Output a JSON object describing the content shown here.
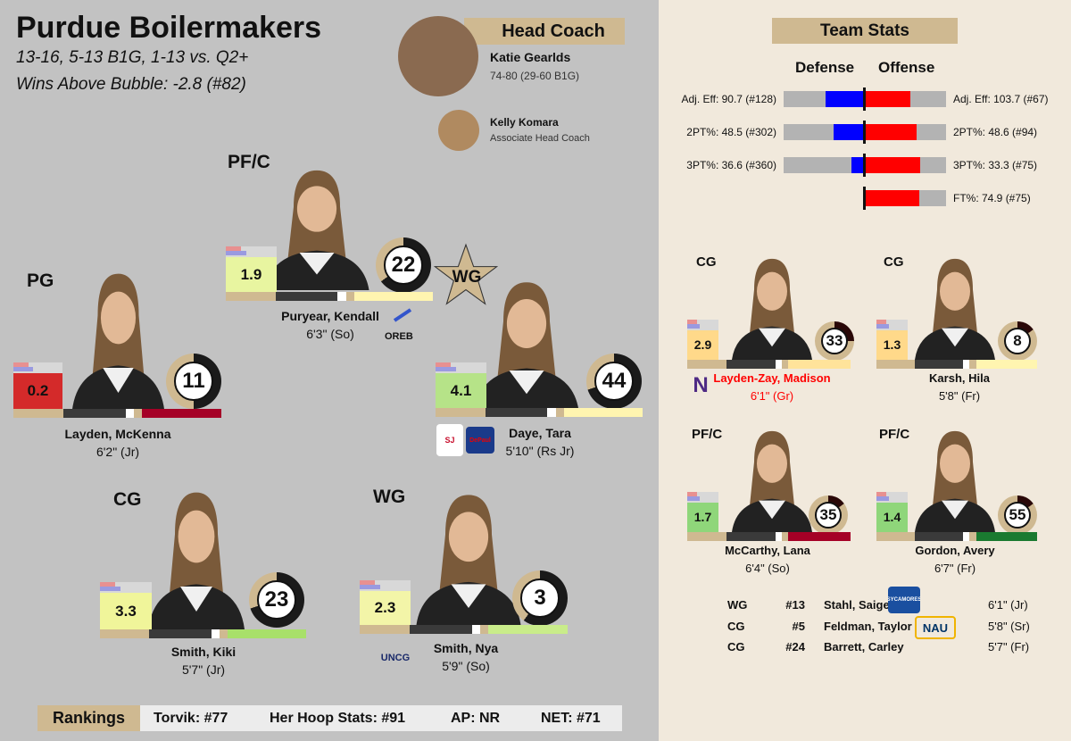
{
  "header": {
    "title": "Purdue Boilermakers",
    "record": "13-16, 5-13 B1G, 1-13 vs. Q2+",
    "wab": "Wins Above Bubble: -2.8 (#82)"
  },
  "coaches": {
    "band": "Head Coach",
    "head": {
      "name": "Katie Gearlds",
      "record": "74-80 (29-60 B1G)"
    },
    "assoc": {
      "name": "Kelly Komara",
      "role": "Associate Head Coach"
    }
  },
  "colors": {
    "left_bg": "#c2c2c2",
    "right_bg": "#f1e9dc",
    "gold": "#cfb991",
    "defense": "#0000ff",
    "offense": "#ff0000",
    "bar_bg": "#b3b3b3"
  },
  "starters": [
    {
      "pos": "PG",
      "name": "Layden, McKenna",
      "height": "6'2\" (Jr)",
      "stat": "0.2",
      "stat_color": "#d42a2a",
      "number": "11",
      "ring_fill": 0.5,
      "bar_accent": "#a50026"
    },
    {
      "pos": "PF/C",
      "name": "Puryear, Kendall",
      "height": "6'3\" (So)",
      "stat": "1.9",
      "stat_color": "#e8f5a0",
      "number": "22",
      "ring_fill": 0.35,
      "bar_accent": "#fff5b0",
      "badge": "WG",
      "award_icon": "OREB"
    },
    {
      "pos": "",
      "name": "Daye, Tara",
      "height": "5'10\" (Rs Jr)",
      "stat": "4.1",
      "stat_color": "#b6e388",
      "number": "44",
      "ring_fill": 0.3,
      "bar_accent": "#fff5b0",
      "logos": [
        "SJ",
        "DePaul"
      ]
    },
    {
      "pos": "CG",
      "name": "Smith, Kiki",
      "height": "5'7\" (Jr)",
      "stat": "3.3",
      "stat_color": "#f0f59a",
      "number": "23",
      "ring_fill": 0.3,
      "bar_accent": "#a8e06a"
    },
    {
      "pos": "WG",
      "name": "Smith, Nya",
      "height": "5'9\" (So)",
      "stat": "2.3",
      "stat_color": "#f3f5a8",
      "number": "3",
      "ring_fill": 0.4,
      "bar_accent": "#c9ec8a",
      "logos": [
        "UNCG"
      ]
    }
  ],
  "team_stats": {
    "band": "Team Stats",
    "defense_label": "Defense",
    "offense_label": "Offense",
    "rows": [
      {
        "def": "Adj. Eff: 90.7 (#128)",
        "def_fill": 0.48,
        "off": "Adj. Eff: 103.7 (#67)",
        "off_fill": 0.57
      },
      {
        "def": "2PT%: 48.5 (#302)",
        "def_fill": 0.38,
        "off": "2PT%: 48.6 (#94)",
        "off_fill": 0.64
      },
      {
        "def": "3PT%: 36.6 (#360)",
        "def_fill": 0.15,
        "off": "3PT%: 33.3 (#75)",
        "off_fill": 0.68
      },
      {
        "def": "",
        "def_fill": null,
        "off": "FT%: 74.9 (#75)",
        "off_fill": 0.67
      }
    ]
  },
  "reserves": [
    {
      "pos": "CG",
      "name": "Layden-Zay, Madison",
      "height": "6'1\" (Gr)",
      "stat": "2.9",
      "stat_color": "#ffd98a",
      "number": "33",
      "ring_fill": 0.75,
      "bar_accent": "#ffe39a",
      "name_color": "#ff0000",
      "logos": [
        "N"
      ]
    },
    {
      "pos": "CG",
      "name": "Karsh, Hila",
      "height": "5'8\" (Fr)",
      "stat": "1.3",
      "stat_color": "#ffd98a",
      "number": "8",
      "ring_fill": 0.85,
      "bar_accent": "#fff5b0"
    },
    {
      "pos": "PF/C",
      "name": "McCarthy, Lana",
      "height": "6'4\" (So)",
      "stat": "1.7",
      "stat_color": "#8fd67a",
      "number": "35",
      "ring_fill": 0.85,
      "bar_accent": "#a50026"
    },
    {
      "pos": "PF/C",
      "name": "Gordon, Avery",
      "height": "6'7\" (Fr)",
      "stat": "1.4",
      "stat_color": "#8fd67a",
      "number": "55",
      "ring_fill": 0.85,
      "bar_accent": "#1a7a30"
    }
  ],
  "bench": [
    {
      "pos": "WG",
      "num": "#13",
      "name": "Stahl, Saige",
      "height": "6'1\" (Jr)",
      "logo": "SYCAMORES"
    },
    {
      "pos": "CG",
      "num": "#5",
      "name": "Feldman, Taylor",
      "height": "5'8\" (Sr)",
      "logo": "NAU"
    },
    {
      "pos": "CG",
      "num": "#24",
      "name": "Barrett, Carley",
      "height": "5'7\" (Fr)"
    }
  ],
  "rankings": {
    "label": "Rankings",
    "items": [
      "Torvik: #77",
      "Her Hoop Stats: #91",
      "AP: NR",
      "NET: #71"
    ]
  }
}
